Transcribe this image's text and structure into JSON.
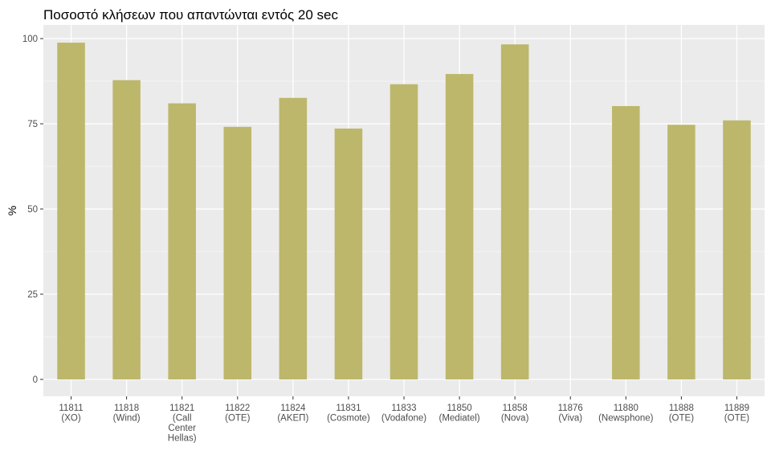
{
  "chart_data": {
    "type": "bar",
    "title": "Ποσοστό κλήσεων που απαντώνται εντός 20 sec",
    "xlabel": "",
    "ylabel": "%",
    "ylim": [
      0,
      100
    ],
    "yticks": [
      "0",
      "25",
      "50",
      "75",
      "100"
    ],
    "grid": true,
    "bar_color": "#bdb76b",
    "panel_color": "#ebebeb",
    "categories": [
      [
        "11811",
        "(XO)"
      ],
      [
        "11818",
        "(Wind)"
      ],
      [
        "11821",
        "(Call",
        "Center",
        "Hellas)"
      ],
      [
        "11822",
        "(OTE)"
      ],
      [
        "11824",
        "(AKEΠ)"
      ],
      [
        "11831",
        "(Cosmote)"
      ],
      [
        "11833",
        "(Vodafone)"
      ],
      [
        "11850",
        "(Mediatel)"
      ],
      [
        "11858",
        "(Nova)"
      ],
      [
        "11876",
        "(Viva)"
      ],
      [
        "11880",
        "(Newsphone)"
      ],
      [
        "11888",
        "(OTE)"
      ],
      [
        "11889",
        "(OTE)"
      ]
    ],
    "values": [
      98.8,
      87.8,
      81.0,
      74.1,
      82.6,
      73.6,
      86.6,
      89.6,
      98.3,
      null,
      80.2,
      74.7,
      76.0
    ]
  }
}
